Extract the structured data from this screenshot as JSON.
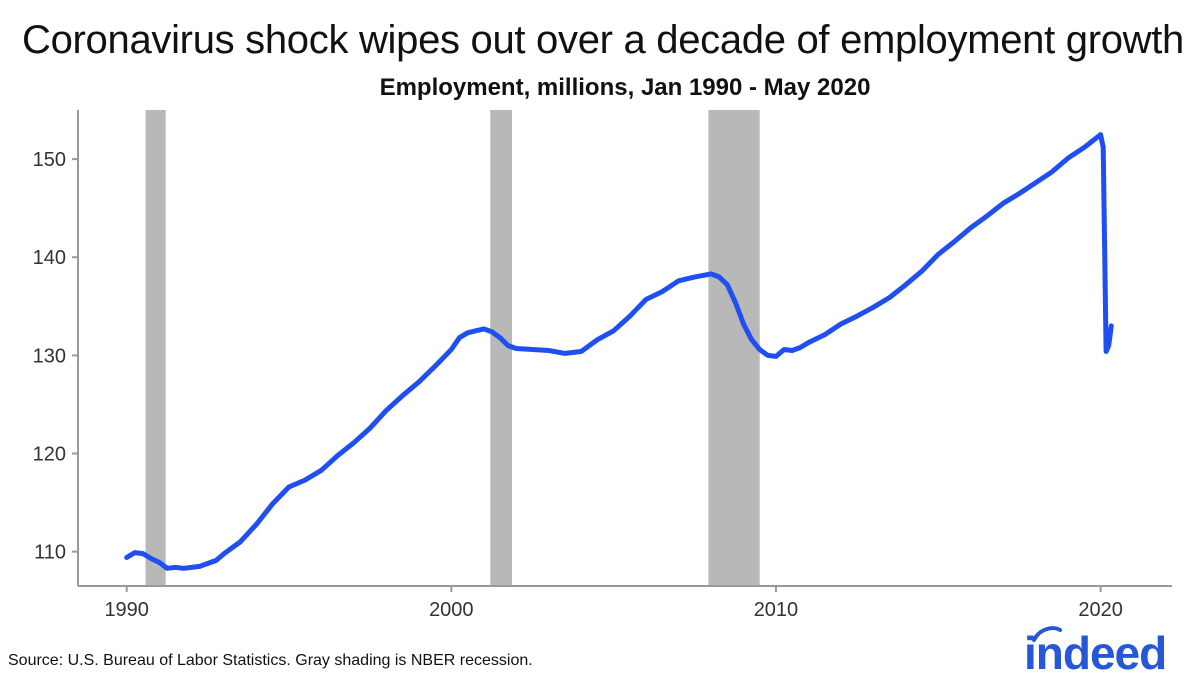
{
  "header": {
    "title": "Coronavirus shock wipes out over a decade of employment growth",
    "subtitle": "Employment, millions, Jan 1990 - May 2020"
  },
  "footer": {
    "source": "Source: U.S. Bureau of Labor Statistics. Gray shading is NBER recession.",
    "logo_text": "indeed"
  },
  "colors": {
    "line": "#1f4ff0",
    "recession": "#b8b8b8",
    "axis": "#999999",
    "logo": "#2557d6"
  },
  "chart_data": {
    "type": "line",
    "title": "Coronavirus shock wipes out over a decade of employment growth",
    "subtitle": "Employment, millions, Jan 1990 - May 2020",
    "xlabel": "",
    "ylabel": "",
    "xlim": [
      1988.5,
      2022.2
    ],
    "ylim": [
      106.5,
      154.8
    ],
    "x_ticks": [
      1990,
      2000,
      2010,
      2020
    ],
    "x_tick_labels": [
      "1990",
      "2000",
      "2010",
      "2020"
    ],
    "y_ticks": [
      110,
      120,
      130,
      140,
      150
    ],
    "y_tick_labels": [
      "110",
      "120",
      "130",
      "140",
      "150"
    ],
    "grid": false,
    "recessions": [
      [
        1990.58,
        1991.2
      ],
      [
        2001.2,
        2001.87
      ],
      [
        2007.92,
        2009.5
      ]
    ],
    "series": [
      {
        "name": "",
        "x": [
          1990.0,
          1990.25,
          1990.5,
          1990.75,
          1991.0,
          1991.25,
          1991.5,
          1991.75,
          1992.0,
          1992.25,
          1992.5,
          1992.75,
          1993.0,
          1993.5,
          1994.0,
          1994.5,
          1995.0,
          1995.5,
          1996.0,
          1996.5,
          1997.0,
          1997.5,
          1998.0,
          1998.5,
          1999.0,
          1999.5,
          2000.0,
          2000.25,
          2000.5,
          2000.75,
          2001.0,
          2001.25,
          2001.5,
          2001.75,
          2002.0,
          2002.5,
          2003.0,
          2003.5,
          2004.0,
          2004.5,
          2005.0,
          2005.5,
          2006.0,
          2006.5,
          2007.0,
          2007.5,
          2008.0,
          2008.25,
          2008.5,
          2008.75,
          2009.0,
          2009.25,
          2009.5,
          2009.75,
          2010.0,
          2010.25,
          2010.5,
          2010.75,
          2011.0,
          2011.5,
          2012.0,
          2012.5,
          2013.0,
          2013.5,
          2014.0,
          2014.5,
          2015.0,
          2015.5,
          2016.0,
          2016.5,
          2017.0,
          2017.5,
          2018.0,
          2018.5,
          2019.0,
          2019.5,
          2020.0,
          2020.08,
          2020.17,
          2020.25,
          2020.33
        ],
        "values": [
          109.4,
          109.9,
          109.8,
          109.3,
          108.9,
          108.3,
          108.4,
          108.3,
          108.4,
          108.5,
          108.8,
          109.1,
          109.8,
          111.0,
          112.8,
          114.9,
          116.6,
          117.3,
          118.3,
          119.8,
          121.1,
          122.6,
          124.4,
          125.9,
          127.3,
          128.9,
          130.6,
          131.8,
          132.3,
          132.5,
          132.7,
          132.4,
          131.8,
          131.0,
          130.7,
          130.6,
          130.5,
          130.2,
          130.4,
          131.6,
          132.5,
          134.0,
          135.7,
          136.5,
          137.6,
          138.0,
          138.3,
          138.0,
          137.2,
          135.4,
          133.2,
          131.6,
          130.6,
          130.0,
          129.9,
          130.6,
          130.5,
          130.8,
          131.3,
          132.1,
          133.2,
          134.0,
          134.9,
          135.9,
          137.2,
          138.6,
          140.3,
          141.6,
          143.0,
          144.2,
          145.5,
          146.5,
          147.6,
          148.7,
          150.1,
          151.2,
          152.5,
          151.2,
          130.4,
          131.0,
          133.0
        ]
      }
    ]
  }
}
